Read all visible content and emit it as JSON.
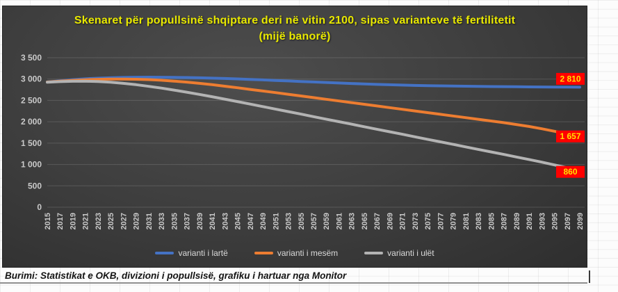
{
  "chart": {
    "title": "Skenaret për popullsinë shqiptare deri në vitin 2100, sipas varianteve të fertilitetit (mijë banorë)",
    "title_color": "#e8e800",
    "background": "dark-gray-gradient",
    "end_label_bg": "#ff0000",
    "end_label_text_color": "#ffe100",
    "axis_text_color": "#cacaca",
    "gridline_color": "rgba(255,255,255,0.14)"
  },
  "chart_data": {
    "type": "line",
    "title": "Skenaret për popullsinë shqiptare deri në vitin 2100, sipas varianteve të fertilitetit (mijë banorë)",
    "xlabel": "",
    "ylabel": "",
    "ylim": [
      0,
      3500
    ],
    "grid": true,
    "legend_position": "bottom",
    "x_tick_rotation": -90,
    "x": [
      2015,
      2017,
      2019,
      2021,
      2023,
      2025,
      2027,
      2029,
      2031,
      2033,
      2035,
      2037,
      2039,
      2041,
      2043,
      2045,
      2047,
      2049,
      2051,
      2053,
      2055,
      2057,
      2059,
      2061,
      2063,
      2065,
      2067,
      2069,
      2071,
      2073,
      2075,
      2077,
      2079,
      2081,
      2083,
      2085,
      2087,
      2089,
      2091,
      2093,
      2095,
      2097,
      2099
    ],
    "yticks": [
      {
        "value": 3500,
        "label": "3 500"
      },
      {
        "value": 3000,
        "label": "3 000"
      },
      {
        "value": 2500,
        "label": "2 500"
      },
      {
        "value": 2000,
        "label": "2 000"
      },
      {
        "value": 1500,
        "label": "1 500"
      },
      {
        "value": 1000,
        "label": "1 000"
      },
      {
        "value": 500,
        "label": "500"
      },
      {
        "value": 0,
        "label": "0"
      }
    ],
    "series": [
      {
        "name": "varianti i lartë",
        "color": "#4472C4",
        "end_label": "2 810",
        "end_label_dy": -12,
        "values": [
          2930,
          2960,
          2985,
          3005,
          3020,
          3030,
          3038,
          3042,
          3044,
          3043,
          3040,
          3036,
          3030,
          3022,
          3013,
          3003,
          2992,
          2980,
          2968,
          2956,
          2944,
          2932,
          2920,
          2908,
          2896,
          2885,
          2875,
          2866,
          2858,
          2851,
          2845,
          2840,
          2836,
          2832,
          2828,
          2825,
          2822,
          2819,
          2816,
          2814,
          2812,
          2811,
          2810
        ]
      },
      {
        "name": "varianti i mesëm",
        "color": "#ED7D31",
        "end_label": "1 657",
        "end_label_dy": 0,
        "values": [
          2930,
          2952,
          2970,
          2984,
          2993,
          2998,
          3000,
          2996,
          2987,
          2972,
          2952,
          2928,
          2900,
          2868,
          2833,
          2796,
          2758,
          2720,
          2682,
          2643,
          2604,
          2565,
          2526,
          2487,
          2448,
          2409,
          2370,
          2331,
          2292,
          2253,
          2214,
          2175,
          2136,
          2097,
          2058,
          2019,
          1980,
          1936,
          1890,
          1836,
          1778,
          1718,
          1657
        ]
      },
      {
        "name": "varianti i ulët",
        "color": "#B3B3B3",
        "end_label": "860",
        "end_label_dy": 2,
        "values": [
          2925,
          2940,
          2948,
          2950,
          2942,
          2925,
          2900,
          2868,
          2830,
          2788,
          2742,
          2692,
          2640,
          2586,
          2530,
          2472,
          2414,
          2356,
          2297,
          2238,
          2179,
          2120,
          2061,
          2002,
          1943,
          1884,
          1825,
          1766,
          1707,
          1648,
          1589,
          1530,
          1471,
          1412,
          1353,
          1294,
          1235,
          1176,
          1117,
          1055,
          990,
          925,
          860
        ]
      }
    ]
  },
  "footer": {
    "source_note": "Burimi: Statistikat e OKB, divizioni i popullsisë, grafiku i hartuar nga Monitor"
  }
}
